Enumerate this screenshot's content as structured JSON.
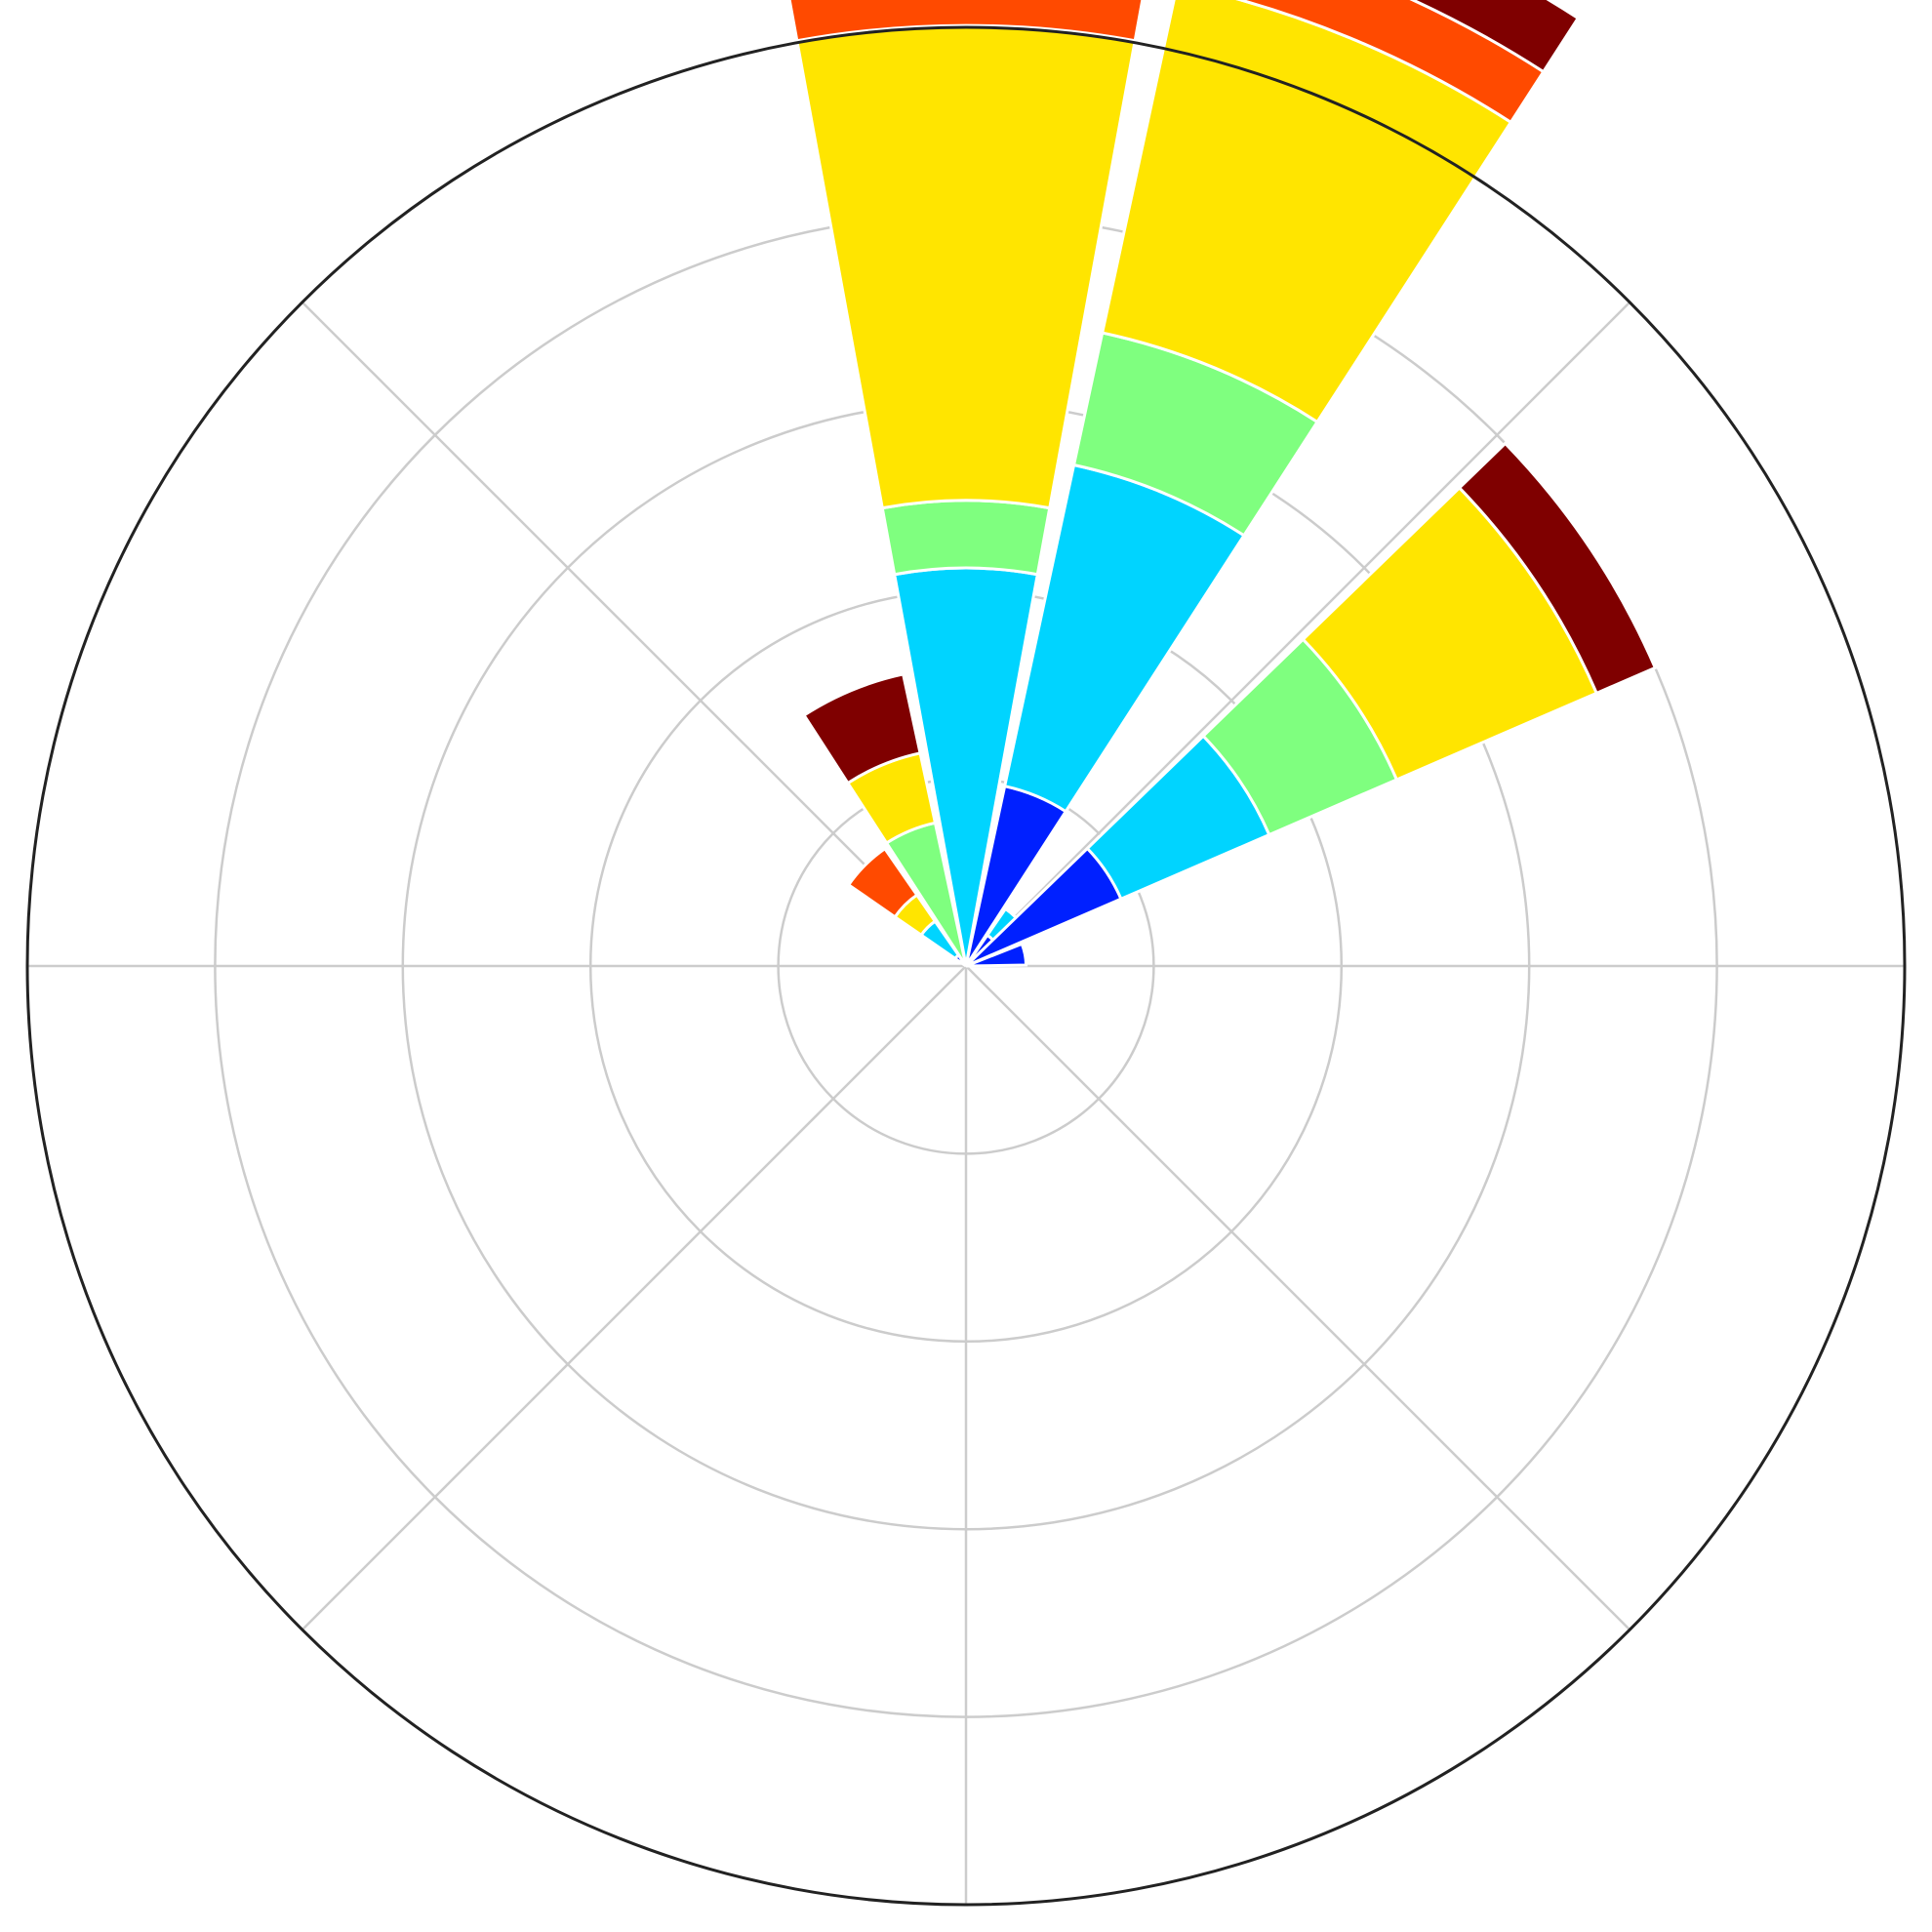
{
  "chart_data": {
    "type": "windrose",
    "direction_convention": "clockwise-from-north",
    "bin_width_deg": 22.5,
    "radial_max": 500,
    "radial_grid": [
      100,
      200,
      300,
      400,
      500
    ],
    "angular_grid_deg": [
      0,
      45,
      90,
      135,
      180,
      225,
      270,
      315
    ],
    "grid": true,
    "legend": "none",
    "colors": {
      "grid": "#cccccc",
      "frame": "#222222",
      "background": "#ffffff",
      "sector_edge": "#ffffff"
    },
    "series_colors": [
      "#0020ff",
      "#00d4ff",
      "#7fff7f",
      "#ffe500",
      "#ff4a00",
      "#7f0000"
    ],
    "directions": [
      {
        "angle_deg": -45,
        "segments": [
          7,
          22,
          0,
          17,
          30,
          0
        ]
      },
      {
        "angle_deg": -22.5,
        "segments": [
          0,
          0,
          78,
          38,
          0,
          43
        ]
      },
      {
        "angle_deg": 0,
        "segments": [
          0,
          212,
          36,
          253,
          36,
          0
        ]
      },
      {
        "angle_deg": 22.5,
        "segments": [
          98,
          175,
          72,
          190,
          32,
          34
        ]
      },
      {
        "angle_deg": 45,
        "segments": [
          20,
          17,
          0,
          0,
          0,
          0
        ]
      },
      {
        "angle_deg": 56.25,
        "segments": [
          90,
          86,
          74,
          116,
          0,
          34
        ]
      },
      {
        "angle_deg": 78.75,
        "segments": [
          32,
          0,
          0,
          0,
          0,
          0
        ]
      }
    ]
  }
}
